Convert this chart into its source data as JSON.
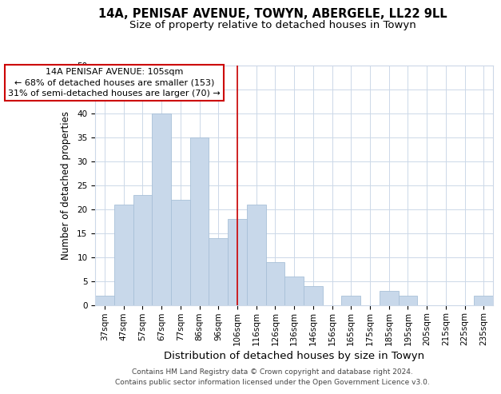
{
  "title": "14A, PENISAF AVENUE, TOWYN, ABERGELE, LL22 9LL",
  "subtitle": "Size of property relative to detached houses in Towyn",
  "xlabel": "Distribution of detached houses by size in Towyn",
  "ylabel": "Number of detached properties",
  "bar_labels": [
    "37sqm",
    "47sqm",
    "57sqm",
    "67sqm",
    "77sqm",
    "86sqm",
    "96sqm",
    "106sqm",
    "116sqm",
    "126sqm",
    "136sqm",
    "146sqm",
    "156sqm",
    "165sqm",
    "175sqm",
    "185sqm",
    "195sqm",
    "205sqm",
    "215sqm",
    "225sqm",
    "235sqm"
  ],
  "bar_values": [
    2,
    21,
    23,
    40,
    22,
    35,
    14,
    18,
    21,
    9,
    6,
    4,
    0,
    2,
    0,
    3,
    2,
    0,
    0,
    0,
    2
  ],
  "bar_color": "#c8d8ea",
  "bar_edge_color": "#a8c0d8",
  "grid_color": "#ccd8e8",
  "annotation_line_color": "#cc0000",
  "annotation_box_text": "14A PENISAF AVENUE: 105sqm\n← 68% of detached houses are smaller (153)\n31% of semi-detached houses are larger (70) →",
  "ylim": [
    0,
    50
  ],
  "yticks": [
    0,
    5,
    10,
    15,
    20,
    25,
    30,
    35,
    40,
    45,
    50
  ],
  "footer1": "Contains HM Land Registry data © Crown copyright and database right 2024.",
  "footer2": "Contains public sector information licensed under the Open Government Licence v3.0.",
  "title_fontsize": 10.5,
  "subtitle_fontsize": 9.5,
  "xlabel_fontsize": 9.5,
  "ylabel_fontsize": 8.5,
  "tick_fontsize": 7.5,
  "annotation_fontsize": 8,
  "footer_fontsize": 6.5
}
